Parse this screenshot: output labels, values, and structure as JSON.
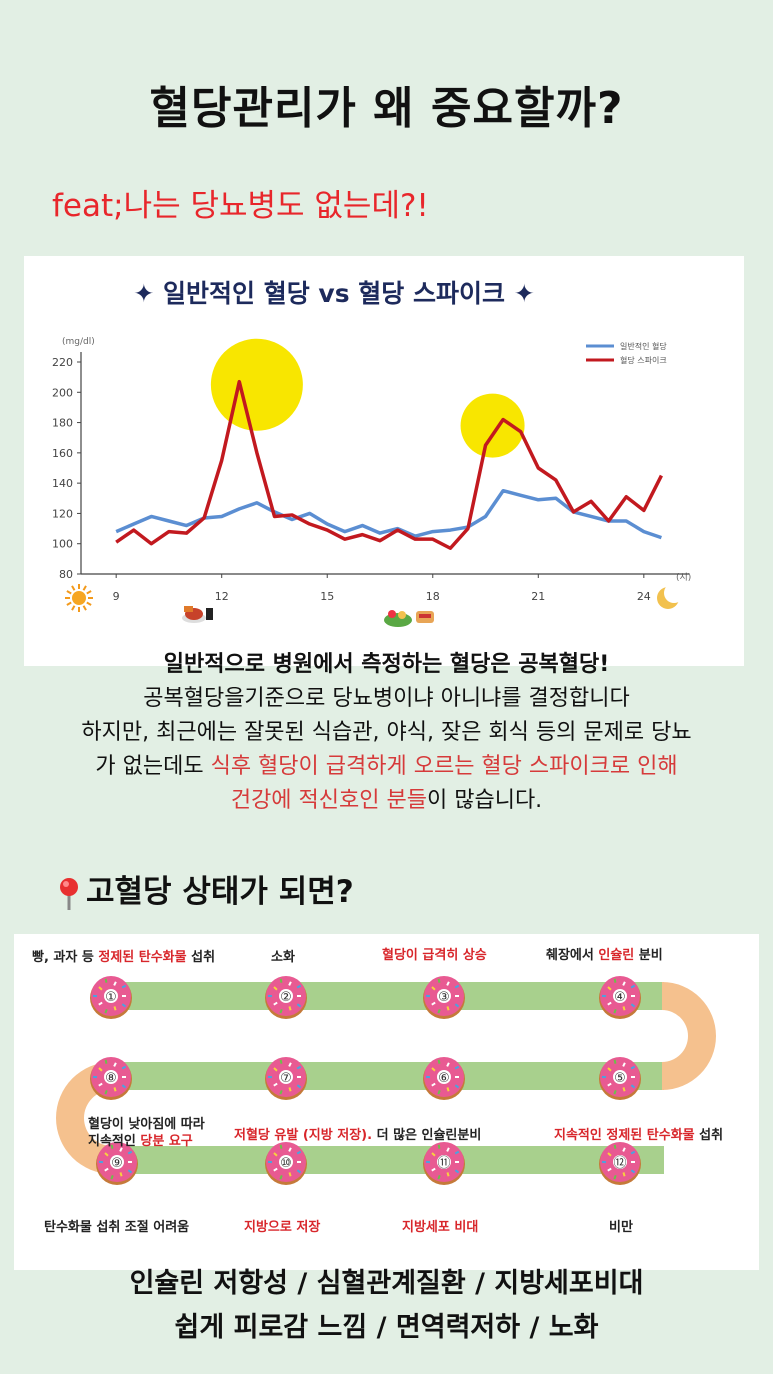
{
  "title": "혈당관리가 왜 중요할까?",
  "subtitle": "feat;나는 당뇨병도 없는데?!",
  "chart_data": {
    "type": "line",
    "title": "✦ 일반적인 혈당 vs 혈당 스파이크 ✦",
    "ylabel": "(mg/dl)",
    "xlabel": "(시)",
    "ylim": [
      80,
      220
    ],
    "yticks": [
      80,
      100,
      120,
      140,
      160,
      180,
      200,
      220
    ],
    "xlim": [
      8,
      25
    ],
    "xticks": [
      9,
      12,
      15,
      18,
      21,
      24
    ],
    "legend_position": "top-right",
    "series": [
      {
        "name": "일반적인 혈당",
        "color": "#5b8ed2",
        "x": [
          9,
          9.5,
          10,
          10.5,
          11,
          11.5,
          12,
          12.5,
          13,
          13.5,
          14,
          14.5,
          15,
          15.5,
          16,
          16.5,
          17,
          17.5,
          18,
          18.5,
          19,
          19.5,
          20,
          20.5,
          21,
          21.5,
          22,
          22.5,
          23,
          23.5,
          24,
          24.5
        ],
        "y": [
          108,
          113,
          118,
          115,
          112,
          117,
          118,
          123,
          127,
          121,
          116,
          120,
          113,
          108,
          112,
          107,
          110,
          105,
          108,
          109,
          111,
          118,
          135,
          132,
          129,
          130,
          121,
          118,
          115,
          115,
          108,
          104
        ]
      },
      {
        "name": "혈당 스파이크",
        "color": "#c2191f",
        "x": [
          9,
          9.5,
          10,
          10.5,
          11,
          11.5,
          12,
          12.5,
          13,
          13.5,
          14,
          14.5,
          15,
          15.5,
          16,
          16.5,
          17,
          17.5,
          18,
          18.5,
          19,
          19.5,
          20,
          20.5,
          21,
          21.5,
          22,
          22.5,
          23,
          23.5,
          24,
          24.5
        ],
        "y": [
          101,
          109,
          100,
          108,
          107,
          117,
          155,
          207,
          160,
          118,
          119,
          113,
          109,
          103,
          106,
          102,
          109,
          103,
          103,
          97,
          110,
          165,
          182,
          174,
          150,
          142,
          121,
          128,
          115,
          131,
          122,
          145
        ]
      }
    ],
    "highlights": [
      {
        "x": 13,
        "y": 205,
        "note": "spike"
      },
      {
        "x": 19.7,
        "y": 178,
        "note": "spike"
      }
    ],
    "icons": {
      "morning": "sun-icon",
      "lunch": "meal-icon",
      "dinner": "salad-icon",
      "night": "moon-icon"
    }
  },
  "description": {
    "line1": "일반적으로 병원에서 측정하는 혈당은 공복혈당!",
    "line2": "공복혈당을기준으로 당뇨병이냐 아니냐를 결정합니다",
    "line3": "하지만,  최근에는 잘못된 식습관, 야식, 잦은 회식 등의 문제로 당뇨",
    "line4_plain": "가 없는데도 ",
    "line4_red": "식후 혈당이 급격하게 오르는 혈당 스파이크로 인해",
    "line5_red": "건강에 적신호인 분들",
    "line5_plain": "이 많습니다."
  },
  "section_title": "고혈당 상태가 되면?",
  "process": {
    "nodes": [
      "①",
      "②",
      "③",
      "④",
      "⑤",
      "⑥",
      "⑦",
      "⑧",
      "⑨",
      "⑩",
      "⑪",
      "⑫"
    ],
    "step1": {
      "a": "빵, 과자 등 ",
      "b": "정제된 탄수화물",
      "c": " 섭취"
    },
    "step2": "소화",
    "step3": {
      "a": "혈당",
      "b": "이 급격히 상승"
    },
    "step4": {
      "a": "췌장에서 ",
      "b": "인슐린",
      "c": " 분비"
    },
    "step5": {
      "a": "지속적인 정제된 탄수화물",
      "b": " 섭취"
    },
    "step6": "더 많은 인슐린분비",
    "step7": {
      "a": "저혈당 유발 (지방 저장).",
      "b": " "
    },
    "step8": {
      "a": "혈당이 낮아짐에 따라",
      "b": "지속적인 ",
      "c": "당분 요구"
    },
    "step9": "탄수화물 섭취 조절 어려움",
    "step10": "지방으로 저장",
    "step11": "지방세포 비대",
    "step12": "비만"
  },
  "footer": {
    "line1": "인슐린 저항성 / 심혈관계질환 / 지방세포비대",
    "line2": "쉽게 피로감 느낌 / 면역력저하 / 노화"
  }
}
